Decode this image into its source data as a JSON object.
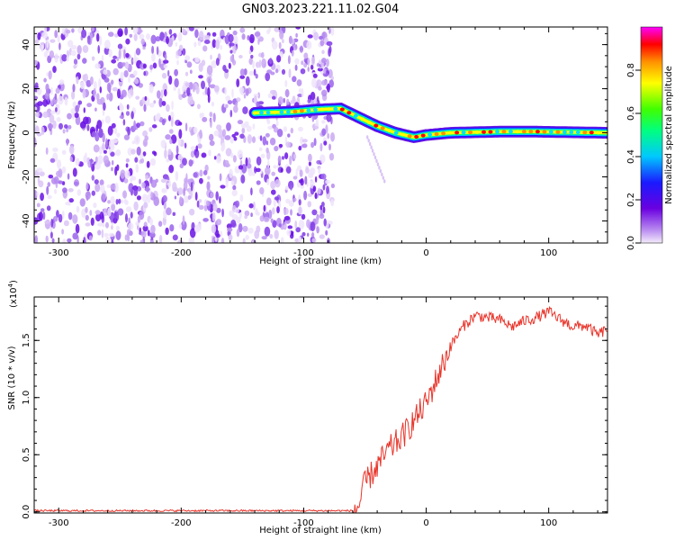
{
  "title": "GN03.2023.221.11.02.G04",
  "chart_data": [
    {
      "type": "heatmap",
      "xlabel": "Height of straight line (km)",
      "ylabel": "Frequency (Hz)",
      "xlim": [
        -320,
        148
      ],
      "ylim": [
        -50,
        48
      ],
      "xticks": [
        -300,
        -200,
        -100,
        0,
        100
      ],
      "yticks": [
        -40,
        -20,
        0,
        20,
        40
      ],
      "colorbar": {
        "label": "Normalized spectral amplitude",
        "range": [
          0,
          1
        ],
        "ticks": [
          0.0,
          0.2,
          0.4,
          0.6,
          0.8
        ],
        "colormap": "rainbow (violet-blue-cyan-green-yellow-red-magenta)"
      },
      "noise_region_x": [
        -320,
        -80
      ],
      "ridge": [
        {
          "x": -140,
          "y": 9
        },
        {
          "x": -110,
          "y": 9.5
        },
        {
          "x": -90,
          "y": 10.5
        },
        {
          "x": -70,
          "y": 11
        },
        {
          "x": -55,
          "y": 7
        },
        {
          "x": -40,
          "y": 3
        },
        {
          "x": -25,
          "y": 0
        },
        {
          "x": -10,
          "y": -2
        },
        {
          "x": 0,
          "y": -1
        },
        {
          "x": 20,
          "y": 0
        },
        {
          "x": 60,
          "y": 0.5
        },
        {
          "x": 90,
          "y": 0.5
        },
        {
          "x": 148,
          "y": 0
        }
      ]
    },
    {
      "type": "line",
      "xlabel": "Height of straight line (km)",
      "ylabel": "SNR (10 * v/v)",
      "yscale_label": "(x10",
      "yscale_exp": "4",
      "yscale_close": ")",
      "xlim": [
        -320,
        148
      ],
      "ylim": [
        -0.01,
        1.88
      ],
      "xticks": [
        -300,
        -200,
        -100,
        0,
        100
      ],
      "yticks": [
        0.0,
        0.5,
        1.0,
        1.5
      ],
      "ytick_labels": [
        "0.0",
        "0.5",
        "1.0",
        "1.5"
      ],
      "series": [
        {
          "color": "#e8362c",
          "points": [
            {
              "x": -320,
              "y": 0.01
            },
            {
              "x": -60,
              "y": 0.01
            },
            {
              "x": -55,
              "y": 0.05
            },
            {
              "x": -50,
              "y": 0.25
            },
            {
              "x": -40,
              "y": 0.4
            },
            {
              "x": -30,
              "y": 0.55
            },
            {
              "x": -20,
              "y": 0.65
            },
            {
              "x": -10,
              "y": 0.8
            },
            {
              "x": 0,
              "y": 0.95
            },
            {
              "x": 10,
              "y": 1.2
            },
            {
              "x": 20,
              "y": 1.45
            },
            {
              "x": 30,
              "y": 1.62
            },
            {
              "x": 40,
              "y": 1.72
            },
            {
              "x": 50,
              "y": 1.7
            },
            {
              "x": 60,
              "y": 1.68
            },
            {
              "x": 70,
              "y": 1.62
            },
            {
              "x": 80,
              "y": 1.67
            },
            {
              "x": 90,
              "y": 1.7
            },
            {
              "x": 100,
              "y": 1.75
            },
            {
              "x": 110,
              "y": 1.68
            },
            {
              "x": 120,
              "y": 1.62
            },
            {
              "x": 130,
              "y": 1.63
            },
            {
              "x": 140,
              "y": 1.55
            },
            {
              "x": 148,
              "y": 1.6
            }
          ]
        }
      ]
    }
  ]
}
